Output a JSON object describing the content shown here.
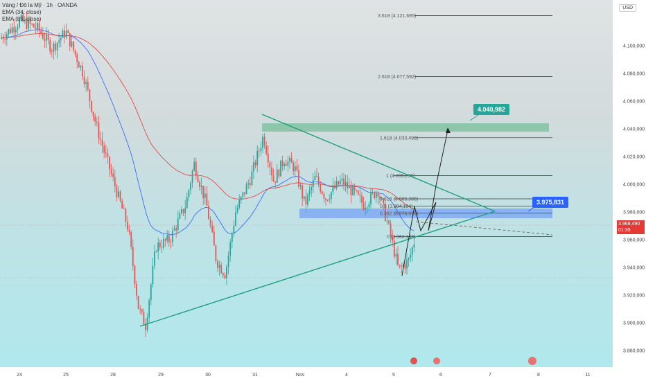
{
  "legend": {
    "symbol": "Vàng / Đô la Mỹ · 1h · OANDA",
    "ema34": "EMA (34, close)",
    "ema89": "EMA (89, close)"
  },
  "currency": "USD",
  "current_price": {
    "value": "3.968,490",
    "timer": "01:35"
  },
  "targets": [
    {
      "label": "4.040,982",
      "color": "#26a69a"
    },
    {
      "label": "3.975,831",
      "color": "#2962ff"
    }
  ],
  "chart_data": {
    "type": "candlestick",
    "title": "",
    "x_ticks": [
      "24",
      "25",
      "28",
      "29",
      "30",
      "31",
      "Nov",
      "4",
      "5",
      "6",
      "7",
      "8",
      "11"
    ],
    "y_ticks": [
      "4.100,000",
      "4.080,000",
      "4.060,000",
      "4.040,000",
      "4.020,000",
      "4.000,000",
      "3.980,000",
      "3.960,000",
      "3.940,000",
      "3.920,000",
      "3.900,000",
      "3.880,000"
    ],
    "ylim": [
      3870,
      4124
    ],
    "fib_levels": [
      {
        "label": "3.618 (4.121,695)",
        "value": 4121.7
      },
      {
        "label": "2.618 (4.077,592)",
        "value": 4077.6
      },
      {
        "label": "1.618 (4.033,490)",
        "value": 4033.5
      },
      {
        "label": "1 (4.006,235)",
        "value": 4006.2
      },
      {
        "label": "0.618 (3.989,388)",
        "value": 3989.4
      },
      {
        "label": "0.5 (3.984,184)",
        "value": 3984.2
      },
      {
        "label": "0.382 (3.978,979)",
        "value": 3979.0
      },
      {
        "label": "0 (3.962,133)",
        "value": 3962.1
      }
    ],
    "series": [
      {
        "name": "EMA (34, close)",
        "color": "#2962ff"
      },
      {
        "name": "EMA (89, close)",
        "color": "#e53935"
      }
    ]
  }
}
